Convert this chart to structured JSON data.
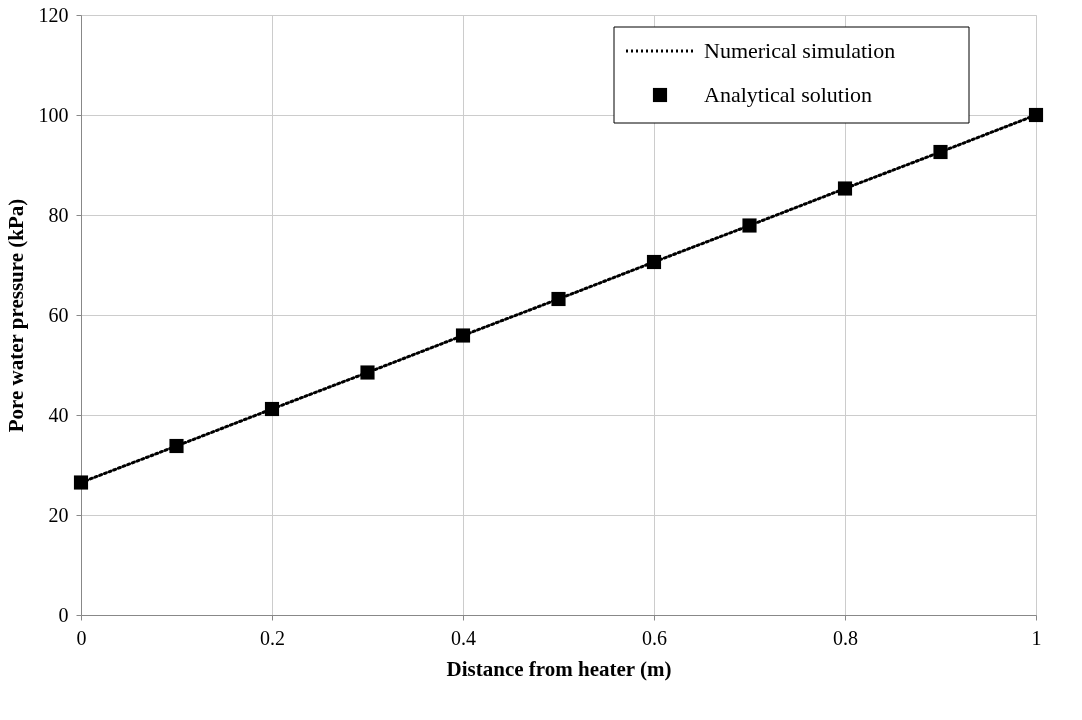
{
  "chart_data": {
    "type": "line",
    "xlabel": "Distance from heater (m)",
    "ylabel": "Pore water pressure (kPa)",
    "x": [
      0,
      0.1,
      0.2,
      0.3,
      0.4,
      0.5,
      0.6,
      0.7,
      0.8,
      0.9,
      1
    ],
    "series": [
      {
        "name": "Numerical simulation",
        "line_style": "dotted",
        "marker": "none",
        "color": "#000000",
        "values": [
          26.5,
          33.8,
          41.2,
          48.5,
          55.9,
          63.2,
          70.6,
          77.9,
          85.3,
          92.6,
          100
        ]
      },
      {
        "name": "Analytical solution",
        "type": "scatter",
        "marker": "square",
        "color": "#000000",
        "values": [
          26.5,
          33.8,
          41.2,
          48.5,
          55.9,
          63.2,
          70.6,
          77.9,
          85.3,
          92.6,
          100
        ]
      }
    ],
    "xlim": [
      0,
      1
    ],
    "xticks": [
      0,
      0.2,
      0.4,
      0.6,
      0.8,
      1
    ],
    "ylim": [
      0,
      120
    ],
    "yticks": [
      0,
      20,
      40,
      60,
      80,
      100,
      120
    ],
    "grid": true,
    "legend": "top right"
  }
}
